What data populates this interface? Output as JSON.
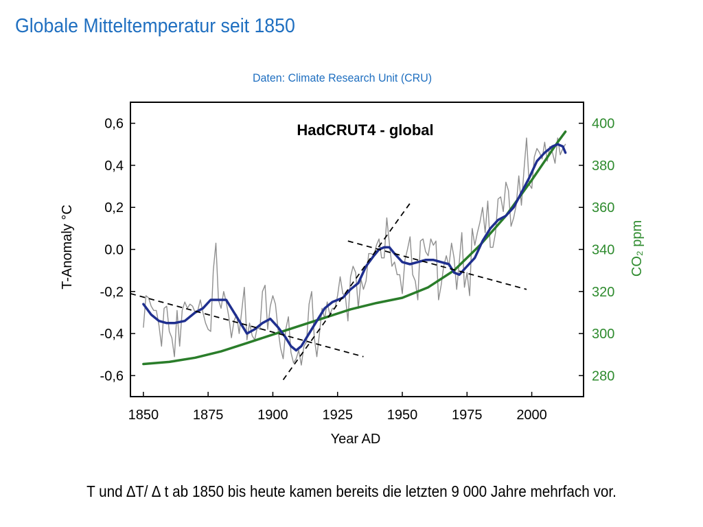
{
  "slide": {
    "title": "Globale Mitteltemperatur seit 1850",
    "source": "Daten: Climate Research Unit (CRU)",
    "caption": "T und ∆T/ ∆ t ab 1850 bis heute kamen bereits die letzten 9 000 Jahre mehrfach vor."
  },
  "chart_data": {
    "type": "line",
    "title": "HadCRUT4 - global",
    "xlabel": "Year AD",
    "ylabel": "T-Anomaly °C",
    "y2label": "CO₂ ppm",
    "xlim": [
      1845,
      2020
    ],
    "ylim": [
      -0.7,
      0.7
    ],
    "y2lim": [
      270,
      410
    ],
    "x_ticks": [
      1850,
      1875,
      1900,
      1925,
      1950,
      1975,
      2000
    ],
    "x_tick_labels": [
      "1850",
      "1875",
      "1900",
      "1925",
      "1950",
      "1975",
      "2000"
    ],
    "y_ticks": [
      0.6,
      0.4,
      0.2,
      0.0,
      -0.2,
      -0.4,
      -0.6
    ],
    "y_tick_labels": [
      "0,6",
      "0,4",
      "0,2",
      "0.0",
      "-0,2",
      "-0,4",
      "-0,6"
    ],
    "y2_ticks": [
      400,
      380,
      360,
      340,
      320,
      300,
      280
    ],
    "y2_tick_labels": [
      "400",
      "380",
      "360",
      "340",
      "320",
      "300",
      "280"
    ],
    "grid": false,
    "colors": {
      "annual": "#8f8f8f",
      "smoothed": "#1f2f8f",
      "co2": "#2a7d2a",
      "co2_tick": "#2e8b2e",
      "trend": "#000000"
    },
    "series": [
      {
        "role": "annual",
        "axis": "left",
        "x": [
          1850,
          1851,
          1852,
          1853,
          1854,
          1855,
          1856,
          1857,
          1858,
          1859,
          1860,
          1861,
          1862,
          1863,
          1864,
          1865,
          1866,
          1867,
          1868,
          1869,
          1870,
          1871,
          1872,
          1873,
          1874,
          1875,
          1876,
          1877,
          1878,
          1879,
          1880,
          1881,
          1882,
          1883,
          1884,
          1885,
          1886,
          1887,
          1888,
          1889,
          1890,
          1891,
          1892,
          1893,
          1894,
          1895,
          1896,
          1897,
          1898,
          1899,
          1900,
          1901,
          1902,
          1903,
          1904,
          1905,
          1906,
          1907,
          1908,
          1909,
          1910,
          1911,
          1912,
          1913,
          1914,
          1915,
          1916,
          1917,
          1918,
          1919,
          1920,
          1921,
          1922,
          1923,
          1924,
          1925,
          1926,
          1927,
          1928,
          1929,
          1930,
          1931,
          1932,
          1933,
          1934,
          1935,
          1936,
          1937,
          1938,
          1939,
          1940,
          1941,
          1942,
          1943,
          1944,
          1945,
          1946,
          1947,
          1948,
          1949,
          1950,
          1951,
          1952,
          1953,
          1954,
          1955,
          1956,
          1957,
          1958,
          1959,
          1960,
          1961,
          1962,
          1963,
          1964,
          1965,
          1966,
          1967,
          1968,
          1969,
          1970,
          1971,
          1972,
          1973,
          1974,
          1975,
          1976,
          1977,
          1978,
          1979,
          1980,
          1981,
          1982,
          1983,
          1984,
          1985,
          1986,
          1987,
          1988,
          1989,
          1990,
          1991,
          1992,
          1993,
          1994,
          1995,
          1996,
          1997,
          1998,
          1999,
          2000,
          2001,
          2002,
          2003,
          2004,
          2005,
          2006,
          2007,
          2008,
          2009,
          2010,
          2011,
          2012,
          2013
        ],
        "y": [
          -0.37,
          -0.22,
          -0.23,
          -0.27,
          -0.29,
          -0.29,
          -0.36,
          -0.46,
          -0.28,
          -0.27,
          -0.39,
          -0.42,
          -0.51,
          -0.29,
          -0.46,
          -0.29,
          -0.25,
          -0.28,
          -0.26,
          -0.27,
          -0.3,
          -0.29,
          -0.24,
          -0.3,
          -0.35,
          -0.38,
          -0.39,
          -0.1,
          0.03,
          -0.24,
          -0.28,
          -0.2,
          -0.25,
          -0.32,
          -0.42,
          -0.34,
          -0.31,
          -0.4,
          -0.29,
          -0.18,
          -0.43,
          -0.35,
          -0.41,
          -0.43,
          -0.37,
          -0.38,
          -0.2,
          -0.17,
          -0.38,
          -0.27,
          -0.22,
          -0.26,
          -0.38,
          -0.47,
          -0.52,
          -0.38,
          -0.32,
          -0.49,
          -0.54,
          -0.52,
          -0.48,
          -0.55,
          -0.46,
          -0.44,
          -0.26,
          -0.2,
          -0.42,
          -0.51,
          -0.4,
          -0.28,
          -0.33,
          -0.25,
          -0.31,
          -0.28,
          -0.28,
          -0.22,
          -0.13,
          -0.21,
          -0.22,
          -0.34,
          -0.13,
          -0.08,
          -0.11,
          -0.28,
          -0.14,
          -0.19,
          -0.15,
          -0.02,
          -0.02,
          -0.03,
          0.02,
          0.05,
          -0.04,
          -0.04,
          0.15,
          0.03,
          -0.08,
          -0.06,
          -0.12,
          -0.12,
          -0.21,
          -0.05,
          0.0,
          0.06,
          -0.12,
          -0.15,
          -0.24,
          0.04,
          0.05,
          -0.01,
          -0.03,
          0.05,
          0.02,
          0.04,
          -0.24,
          -0.17,
          -0.08,
          -0.03,
          -0.08,
          0.03,
          -0.04,
          -0.19,
          -0.06,
          0.08,
          -0.18,
          -0.11,
          -0.22,
          0.1,
          0.02,
          0.08,
          0.13,
          0.2,
          0.08,
          0.23,
          0.01,
          0.01,
          0.08,
          0.24,
          0.25,
          0.18,
          0.32,
          0.28,
          0.11,
          0.15,
          0.21,
          0.35,
          0.21,
          0.38,
          0.53,
          0.31,
          0.29,
          0.44,
          0.48,
          0.46,
          0.43,
          0.51,
          0.42,
          0.49,
          0.46,
          0.41,
          0.53,
          0.45,
          0.48,
          0.5
        ]
      },
      {
        "role": "smoothed",
        "axis": "left",
        "x": [
          1850,
          1853,
          1856,
          1859,
          1862,
          1866,
          1870,
          1873,
          1876,
          1879,
          1882,
          1885,
          1888,
          1890,
          1893,
          1896,
          1899,
          1902,
          1905,
          1907,
          1909,
          1911,
          1914,
          1917,
          1920,
          1923,
          1927,
          1930,
          1933,
          1936,
          1939,
          1941,
          1943,
          1945,
          1947,
          1950,
          1953,
          1956,
          1959,
          1962,
          1965,
          1968,
          1970,
          1972,
          1975,
          1978,
          1981,
          1984,
          1987,
          1990,
          1993,
          1996,
          1999,
          2002,
          2005,
          2008,
          2010,
          2012,
          2013
        ],
        "y": [
          -0.26,
          -0.31,
          -0.34,
          -0.35,
          -0.35,
          -0.34,
          -0.3,
          -0.28,
          -0.24,
          -0.24,
          -0.24,
          -0.3,
          -0.36,
          -0.4,
          -0.38,
          -0.35,
          -0.33,
          -0.37,
          -0.42,
          -0.46,
          -0.48,
          -0.46,
          -0.4,
          -0.34,
          -0.28,
          -0.25,
          -0.23,
          -0.19,
          -0.16,
          -0.08,
          -0.03,
          0.0,
          0.01,
          0.01,
          -0.02,
          -0.06,
          -0.07,
          -0.06,
          -0.05,
          -0.05,
          -0.06,
          -0.07,
          -0.11,
          -0.12,
          -0.08,
          -0.04,
          0.04,
          0.1,
          0.14,
          0.16,
          0.2,
          0.27,
          0.34,
          0.42,
          0.46,
          0.49,
          0.5,
          0.49,
          0.46
        ]
      },
      {
        "role": "co2",
        "axis": "right",
        "x": [
          1850,
          1860,
          1870,
          1880,
          1890,
          1900,
          1910,
          1920,
          1930,
          1940,
          1950,
          1960,
          1970,
          1980,
          1990,
          2000,
          2010,
          2013
        ],
        "y": [
          285.5,
          286.5,
          288.5,
          291.5,
          295.5,
          299.5,
          303.5,
          307.5,
          311.5,
          314.5,
          317,
          322,
          330,
          342,
          356,
          373,
          391,
          396
        ]
      }
    ],
    "trend_lines": [
      {
        "x": [
          1845,
          1935
        ],
        "y": [
          -0.21,
          -0.51
        ]
      },
      {
        "x": [
          1904,
          1953
        ],
        "y": [
          -0.62,
          0.22
        ]
      },
      {
        "x": [
          1929,
          1998
        ],
        "y": [
          0.04,
          -0.19
        ]
      }
    ]
  }
}
